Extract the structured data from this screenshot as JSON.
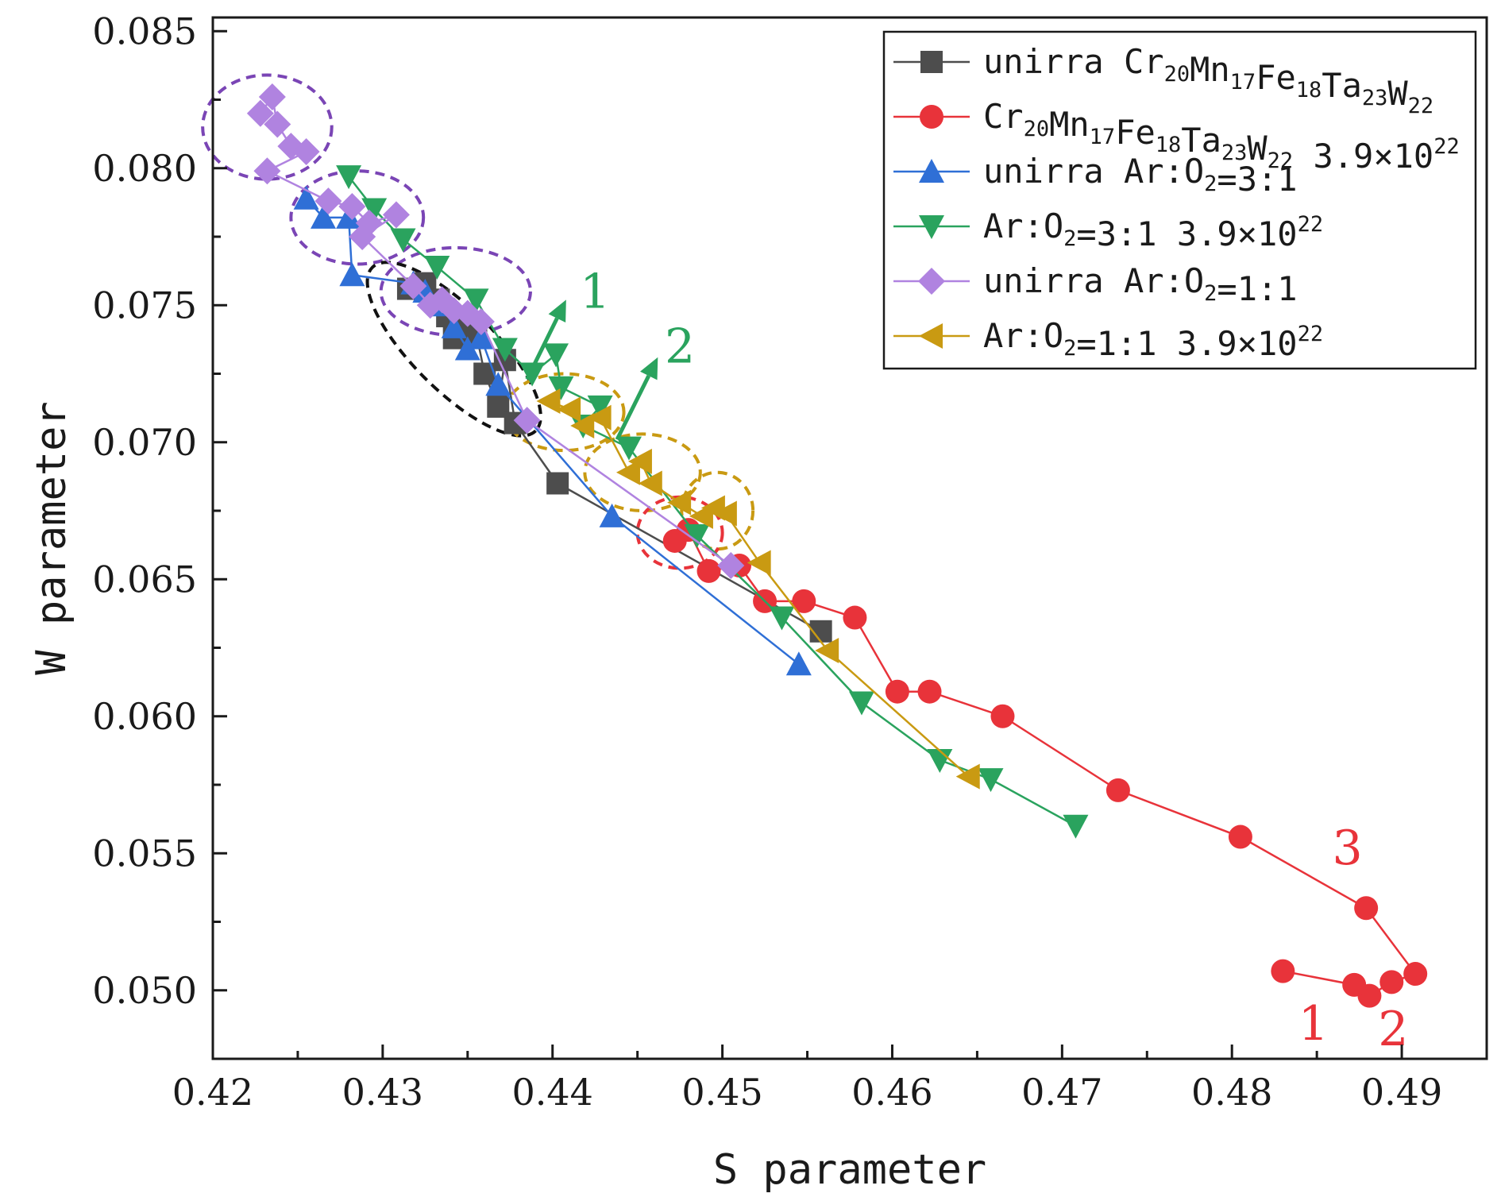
{
  "chart_data": {
    "type": "scatter",
    "title": "",
    "xlabel": "S parameter",
    "ylabel": "W parameter",
    "xlim": [
      0.42,
      0.495
    ],
    "ylim": [
      0.0475,
      0.0855
    ],
    "xticks": [
      0.42,
      0.43,
      0.44,
      0.45,
      0.46,
      0.47,
      0.48,
      0.49
    ],
    "yticks": [
      0.05,
      0.055,
      0.06,
      0.065,
      0.07,
      0.075,
      0.08,
      0.085
    ],
    "xtick_labels": [
      "0.42",
      "0.43",
      "0.44",
      "0.45",
      "0.46",
      "0.47",
      "0.48",
      "0.49"
    ],
    "ytick_labels": [
      "0.050",
      "0.055",
      "0.060",
      "0.065",
      "0.070",
      "0.075",
      "0.080",
      "0.085"
    ],
    "grid": false,
    "legend_position": "top-right",
    "series": [
      {
        "name": "unirra Cr20Mn17Fe18Ta23W22",
        "legend_parts": [
          [
            "unirra Cr",
            ""
          ],
          [
            "20",
            "sub"
          ],
          [
            "Mn",
            ""
          ],
          [
            "17",
            "sub"
          ],
          [
            "Fe",
            ""
          ],
          [
            "18",
            "sub"
          ],
          [
            "Ta",
            ""
          ],
          [
            "23",
            "sub"
          ],
          [
            "W",
            ""
          ],
          [
            "22",
            "sub"
          ]
        ],
        "marker": "square",
        "color": "#4d4d4d",
        "line_color": "#4d4d4d",
        "x": [
          0.4315,
          0.4325,
          0.4333,
          0.4338,
          0.4342,
          0.4346,
          0.4355,
          0.436,
          0.4368,
          0.4372,
          0.4378,
          0.4403,
          0.4558
        ],
        "y": [
          0.0756,
          0.0758,
          0.0752,
          0.0746,
          0.0738,
          0.0745,
          0.074,
          0.0725,
          0.0713,
          0.073,
          0.0707,
          0.0685,
          0.0631
        ]
      },
      {
        "name": "Cr20Mn17Fe18Ta23W22 3.9×10^22",
        "legend_parts": [
          [
            "Cr",
            ""
          ],
          [
            "20",
            "sub"
          ],
          [
            "Mn",
            ""
          ],
          [
            "17",
            "sub"
          ],
          [
            "Fe",
            ""
          ],
          [
            "18",
            "sub"
          ],
          [
            "Ta",
            ""
          ],
          [
            "23",
            "sub"
          ],
          [
            "W",
            ""
          ],
          [
            "22",
            "sub"
          ],
          [
            " 3.9×10",
            ""
          ],
          [
            "22",
            "sup"
          ]
        ],
        "marker": "circle",
        "color": "#e8333a",
        "line_color": "#e8333a",
        "x": [
          0.4472,
          0.448,
          0.4492,
          0.451,
          0.4525,
          0.4548,
          0.4578,
          0.4603,
          0.4622,
          0.4665,
          0.4733,
          0.4805,
          0.4879,
          0.4908,
          0.4894,
          0.4881,
          0.4872,
          0.483
        ],
        "y": [
          0.0664,
          0.0668,
          0.0653,
          0.0655,
          0.0642,
          0.0642,
          0.0636,
          0.0609,
          0.0609,
          0.06,
          0.0573,
          0.0556,
          0.053,
          0.0506,
          0.0503,
          0.0498,
          0.0502,
          0.0507
        ]
      },
      {
        "name": "unirra Ar:O2=3:1",
        "legend_parts": [
          [
            "unirra Ar:O",
            ""
          ],
          [
            "2",
            "sub"
          ],
          [
            "=3:1",
            ""
          ]
        ],
        "marker": "triangle-up",
        "color": "#2f6fd6",
        "line_color": "#2f6fd6",
        "x": [
          0.4255,
          0.4265,
          0.428,
          0.4282,
          0.4318,
          0.4325,
          0.4335,
          0.4342,
          0.435,
          0.4358,
          0.4368,
          0.4435,
          0.4545
        ],
        "y": [
          0.0789,
          0.0782,
          0.0782,
          0.0761,
          0.0758,
          0.0755,
          0.075,
          0.0742,
          0.0734,
          0.0738,
          0.0721,
          0.0673,
          0.0619
        ]
      },
      {
        "name": "Ar:O2=3:1 3.9×10^22",
        "legend_parts": [
          [
            "Ar:O",
            ""
          ],
          [
            "2",
            "sub"
          ],
          [
            "=3:1 3.9×10",
            ""
          ],
          [
            "22",
            "sup"
          ]
        ],
        "marker": "triangle-down",
        "color": "#2aa35e",
        "line_color": "#2aa35e",
        "x": [
          0.428,
          0.4295,
          0.4312,
          0.4332,
          0.4355,
          0.4372,
          0.4388,
          0.4402,
          0.4405,
          0.4428,
          0.4418,
          0.4445,
          0.4485,
          0.4535,
          0.4582,
          0.4628,
          0.4658,
          0.4708
        ],
        "y": [
          0.0797,
          0.0785,
          0.0774,
          0.0764,
          0.0752,
          0.0734,
          0.0725,
          0.0732,
          0.072,
          0.0713,
          0.0706,
          0.0698,
          0.0666,
          0.0636,
          0.0605,
          0.0584,
          0.0577,
          0.056
        ]
      },
      {
        "name": "unirra Ar:O2=1:1",
        "legend_parts": [
          [
            "unirra Ar:O",
            ""
          ],
          [
            "2",
            "sub"
          ],
          [
            "=1:1",
            ""
          ]
        ],
        "marker": "diamond",
        "color": "#b083e0",
        "line_color": "#b083e0",
        "x": [
          0.4228,
          0.4235,
          0.4238,
          0.4246,
          0.4255,
          0.4232,
          0.4268,
          0.4282,
          0.4292,
          0.4308,
          0.4288,
          0.4318,
          0.4328,
          0.4335,
          0.4342,
          0.435,
          0.4358,
          0.4385,
          0.4505
        ],
        "y": [
          0.082,
          0.0826,
          0.0816,
          0.0808,
          0.0806,
          0.0799,
          0.0788,
          0.0786,
          0.078,
          0.0783,
          0.0775,
          0.0757,
          0.075,
          0.0752,
          0.0748,
          0.0747,
          0.0744,
          0.0708,
          0.0655
        ]
      },
      {
        "name": "Ar:O2=1:1 3.9×10^22",
        "legend_parts": [
          [
            "Ar:O",
            ""
          ],
          [
            "2",
            "sub"
          ],
          [
            "=1:1 3.9×10",
            ""
          ],
          [
            "22",
            "sup"
          ]
        ],
        "marker": "triangle-left",
        "color": "#c99a12",
        "line_color": "#c99a12",
        "x": [
          0.4398,
          0.441,
          0.4418,
          0.4428,
          0.4445,
          0.4452,
          0.4458,
          0.4475,
          0.4488,
          0.4495,
          0.4502,
          0.4522,
          0.4562,
          0.4645
        ],
        "y": [
          0.0715,
          0.0712,
          0.0706,
          0.0709,
          0.0689,
          0.0693,
          0.0685,
          0.0678,
          0.0673,
          0.0676,
          0.0674,
          0.0656,
          0.0624,
          0.0578
        ]
      }
    ],
    "ellipses": [
      {
        "cx": 0.4232,
        "cy": 0.0815,
        "rx": 0.0038,
        "ry": 0.0019,
        "angle": 0,
        "color": "#7a45b5",
        "label": "purple-1"
      },
      {
        "cx": 0.4285,
        "cy": 0.0782,
        "rx": 0.0039,
        "ry": 0.0017,
        "angle": 0,
        "color": "#7a45b5",
        "label": "purple-2"
      },
      {
        "cx": 0.4343,
        "cy": 0.0755,
        "rx": 0.0044,
        "ry": 0.0016,
        "angle": 0,
        "color": "#7a45b5",
        "label": "purple-3"
      },
      {
        "cx": 0.4342,
        "cy": 0.0734,
        "rx": 0.0068,
        "ry": 0.0015,
        "angle": 45,
        "color": "#111111",
        "label": "black"
      },
      {
        "cx": 0.4407,
        "cy": 0.0711,
        "rx": 0.0035,
        "ry": 0.0014,
        "angle": 0,
        "color": "#c99a12",
        "label": "gold-1"
      },
      {
        "cx": 0.4453,
        "cy": 0.0689,
        "rx": 0.0034,
        "ry": 0.0014,
        "angle": 0,
        "color": "#c99a12",
        "label": "gold-2"
      },
      {
        "cx": 0.4497,
        "cy": 0.0675,
        "rx": 0.0021,
        "ry": 0.0014,
        "angle": 0,
        "color": "#c99a12",
        "label": "gold-3"
      },
      {
        "cx": 0.4475,
        "cy": 0.0667,
        "rx": 0.0025,
        "ry": 0.0013,
        "angle": 0,
        "color": "#e8333a",
        "label": "red"
      }
    ],
    "arrows": [
      {
        "x1": 0.4385,
        "y1": 0.0723,
        "x2": 0.4408,
        "y2": 0.0752,
        "color": "#2aa35e"
      },
      {
        "x1": 0.4438,
        "y1": 0.0701,
        "x2": 0.4462,
        "y2": 0.0731,
        "color": "#2aa35e"
      }
    ],
    "annotations": [
      {
        "text": "1",
        "x": 0.4425,
        "y": 0.0749,
        "color": "#2aa35e"
      },
      {
        "text": "2",
        "x": 0.4475,
        "y": 0.0729,
        "color": "#2aa35e"
      },
      {
        "text": "3",
        "x": 0.4868,
        "y": 0.0546,
        "color": "#e8333a"
      },
      {
        "text": "1",
        "x": 0.4848,
        "y": 0.0482,
        "color": "#e8333a"
      },
      {
        "text": "2",
        "x": 0.4895,
        "y": 0.048,
        "color": "#e8333a"
      }
    ]
  }
}
